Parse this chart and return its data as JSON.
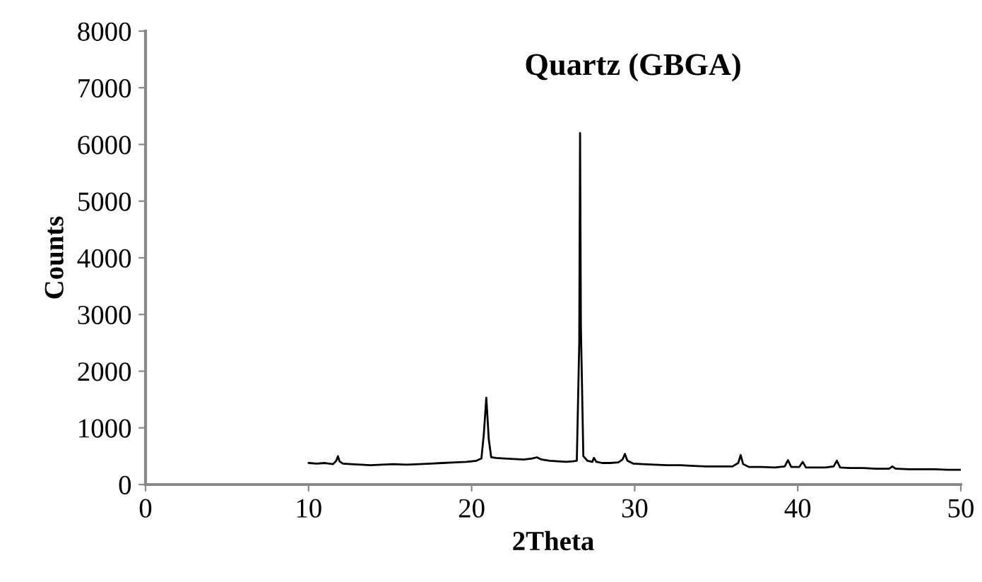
{
  "chart_data": {
    "type": "line",
    "xlabel": "2Theta",
    "ylabel": "Counts",
    "xlim": [
      0,
      50
    ],
    "xticks": [
      0,
      10,
      20,
      30,
      40,
      50
    ],
    "ylim": [
      0,
      8000
    ],
    "yticks": [
      0,
      1000,
      2000,
      3000,
      4000,
      5000,
      6000,
      7000,
      8000
    ],
    "grid": false,
    "marker": "none",
    "line_style": "solid",
    "annotations": [
      "Quartz (GBGA)"
    ],
    "series": [
      {
        "color": "#000000",
        "x": [
          10.0,
          10.5,
          11.0,
          11.5,
          11.7,
          11.8,
          11.9,
          12.1,
          12.6,
          13.2,
          13.8,
          14.5,
          15.2,
          16.0,
          16.8,
          17.5,
          18.2,
          19.0,
          19.7,
          20.3,
          20.6,
          20.75,
          20.9,
          21.05,
          21.2,
          21.5,
          22.0,
          22.6,
          23.2,
          23.7,
          24.0,
          24.3,
          24.8,
          25.3,
          25.8,
          26.2,
          26.45,
          26.6,
          26.65,
          26.7,
          26.85,
          27.1,
          27.4,
          27.5,
          27.65,
          28.0,
          28.5,
          29.0,
          29.25,
          29.4,
          29.55,
          29.9,
          30.5,
          31.2,
          32.0,
          32.8,
          33.6,
          34.4,
          35.2,
          36.0,
          36.35,
          36.5,
          36.65,
          37.0,
          37.8,
          38.6,
          39.2,
          39.4,
          39.6,
          40.1,
          40.3,
          40.5,
          41.0,
          41.7,
          42.2,
          42.4,
          42.6,
          43.2,
          44.0,
          44.8,
          45.6,
          45.8,
          46.0,
          46.8,
          47.6,
          48.4,
          49.2,
          50.0
        ],
        "values": [
          380,
          370,
          380,
          360,
          420,
          500,
          410,
          370,
          360,
          350,
          340,
          350,
          360,
          350,
          360,
          370,
          380,
          390,
          400,
          420,
          460,
          900,
          1530,
          800,
          480,
          470,
          460,
          450,
          440,
          460,
          480,
          440,
          420,
          410,
          400,
          410,
          420,
          2500,
          6200,
          2800,
          500,
          420,
          400,
          470,
          400,
          380,
          380,
          390,
          440,
          540,
          420,
          370,
          360,
          350,
          340,
          340,
          330,
          320,
          320,
          320,
          380,
          520,
          360,
          310,
          310,
          300,
          320,
          430,
          310,
          310,
          400,
          300,
          300,
          300,
          320,
          420,
          300,
          290,
          290,
          280,
          280,
          320,
          280,
          270,
          270,
          270,
          260,
          260
        ]
      }
    ]
  }
}
